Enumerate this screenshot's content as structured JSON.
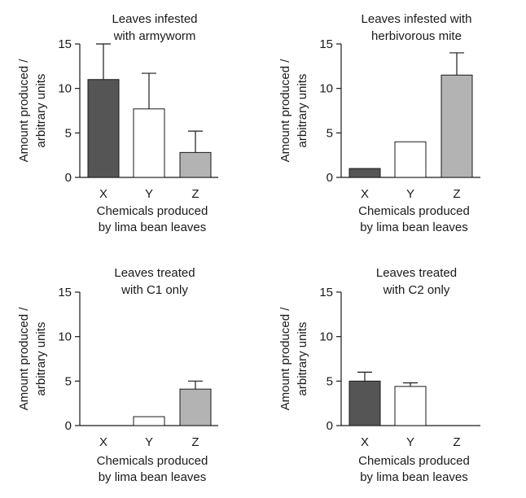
{
  "chart_data": [
    {
      "type": "bar",
      "title_lines": [
        "Leaves infested",
        "with armyworm"
      ],
      "ylabel_lines": [
        "Amount produced /",
        "arbitrary units"
      ],
      "xlabel_lines": [
        "Chemicals produced",
        "by lima bean leaves"
      ],
      "categories": [
        "X",
        "Y",
        "Z"
      ],
      "values": [
        11,
        7.7,
        2.8
      ],
      "error_upper": [
        15,
        11.7,
        5.2
      ],
      "bar_colors": [
        "#555555",
        "#ffffff",
        "#b3b3b3"
      ],
      "ylim": [
        0,
        15
      ],
      "yticks": [
        "0",
        "5",
        "10",
        "15"
      ]
    },
    {
      "type": "bar",
      "title_lines": [
        "Leaves infested with",
        "herbivorous mite"
      ],
      "ylabel_lines": [
        "Amount produced /",
        "arbitrary units"
      ],
      "xlabel_lines": [
        "Chemicals produced",
        "by lima bean leaves"
      ],
      "categories": [
        "X",
        "Y",
        "Z"
      ],
      "values": [
        1,
        4,
        11.5
      ],
      "error_upper": [
        null,
        null,
        14
      ],
      "bar_colors": [
        "#555555",
        "#ffffff",
        "#b3b3b3"
      ],
      "ylim": [
        0,
        15
      ],
      "yticks": [
        "0",
        "5",
        "10",
        "15"
      ]
    },
    {
      "type": "bar",
      "title_lines": [
        "Leaves treated",
        "with C1 only"
      ],
      "ylabel_lines": [
        "Amount produced /",
        "arbitrary units"
      ],
      "xlabel_lines": [
        "Chemicals produced",
        "by lima bean leaves"
      ],
      "categories": [
        "X",
        "Y",
        "Z"
      ],
      "values": [
        0,
        1,
        4.1
      ],
      "error_upper": [
        null,
        null,
        5
      ],
      "bar_colors": [
        "#555555",
        "#ffffff",
        "#b3b3b3"
      ],
      "ylim": [
        0,
        15
      ],
      "yticks": [
        "0",
        "5",
        "10",
        "15"
      ]
    },
    {
      "type": "bar",
      "title_lines": [
        "Leaves treated",
        "with C2 only"
      ],
      "ylabel_lines": [
        "Amount produced /",
        "arbitrary units"
      ],
      "xlabel_lines": [
        "Chemicals produced",
        "by lima bean leaves"
      ],
      "categories": [
        "X",
        "Y",
        "Z"
      ],
      "values": [
        5,
        4.4,
        0
      ],
      "error_upper": [
        6,
        4.8,
        null
      ],
      "bar_colors": [
        "#555555",
        "#ffffff",
        "#b3b3b3"
      ],
      "ylim": [
        0,
        15
      ],
      "yticks": [
        "0",
        "5",
        "10",
        "15"
      ]
    }
  ]
}
